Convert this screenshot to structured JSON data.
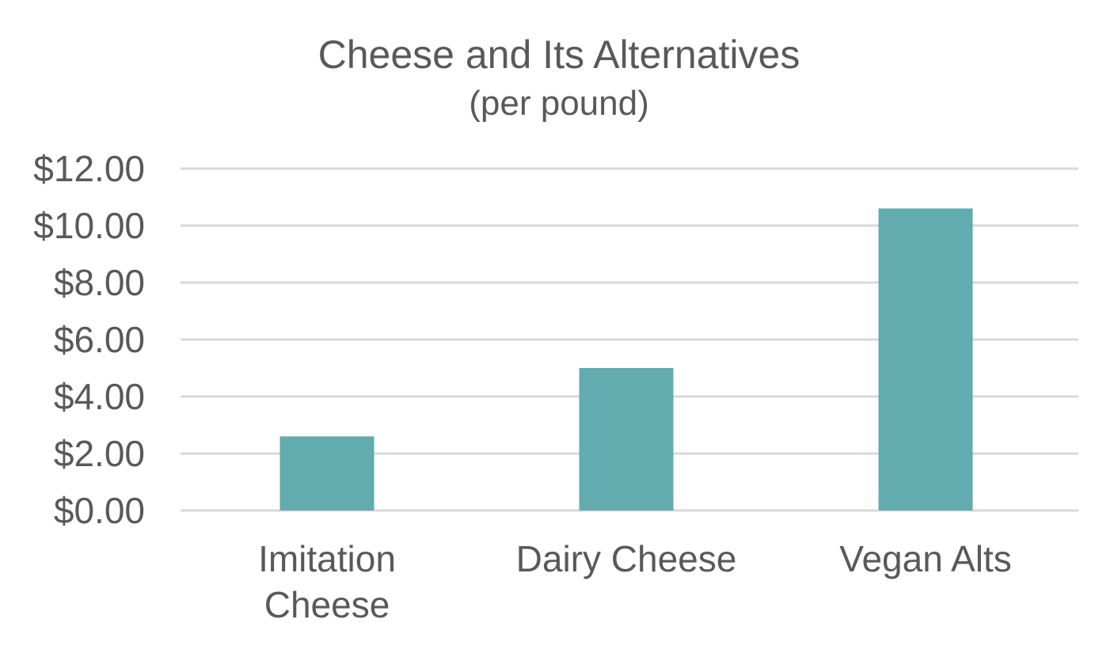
{
  "chart_data": {
    "type": "bar",
    "title": "Cheese and Its Alternatives",
    "subtitle": "(per pound)",
    "categories": [
      [
        "Imitation",
        "Cheese"
      ],
      [
        "Dairy Cheese"
      ],
      [
        "Vegan Alts"
      ]
    ],
    "values": [
      2.6,
      5.0,
      10.6
    ],
    "ylim": [
      0,
      12
    ],
    "yticks": [
      0,
      2,
      4,
      6,
      8,
      10,
      12
    ],
    "ytick_labels": [
      "$0.00",
      "$2.00",
      "$4.00",
      "$6.00",
      "$8.00",
      "$10.00",
      "$12.00"
    ],
    "grid": true,
    "legend": "none",
    "bar_color": "#62ABAE"
  }
}
